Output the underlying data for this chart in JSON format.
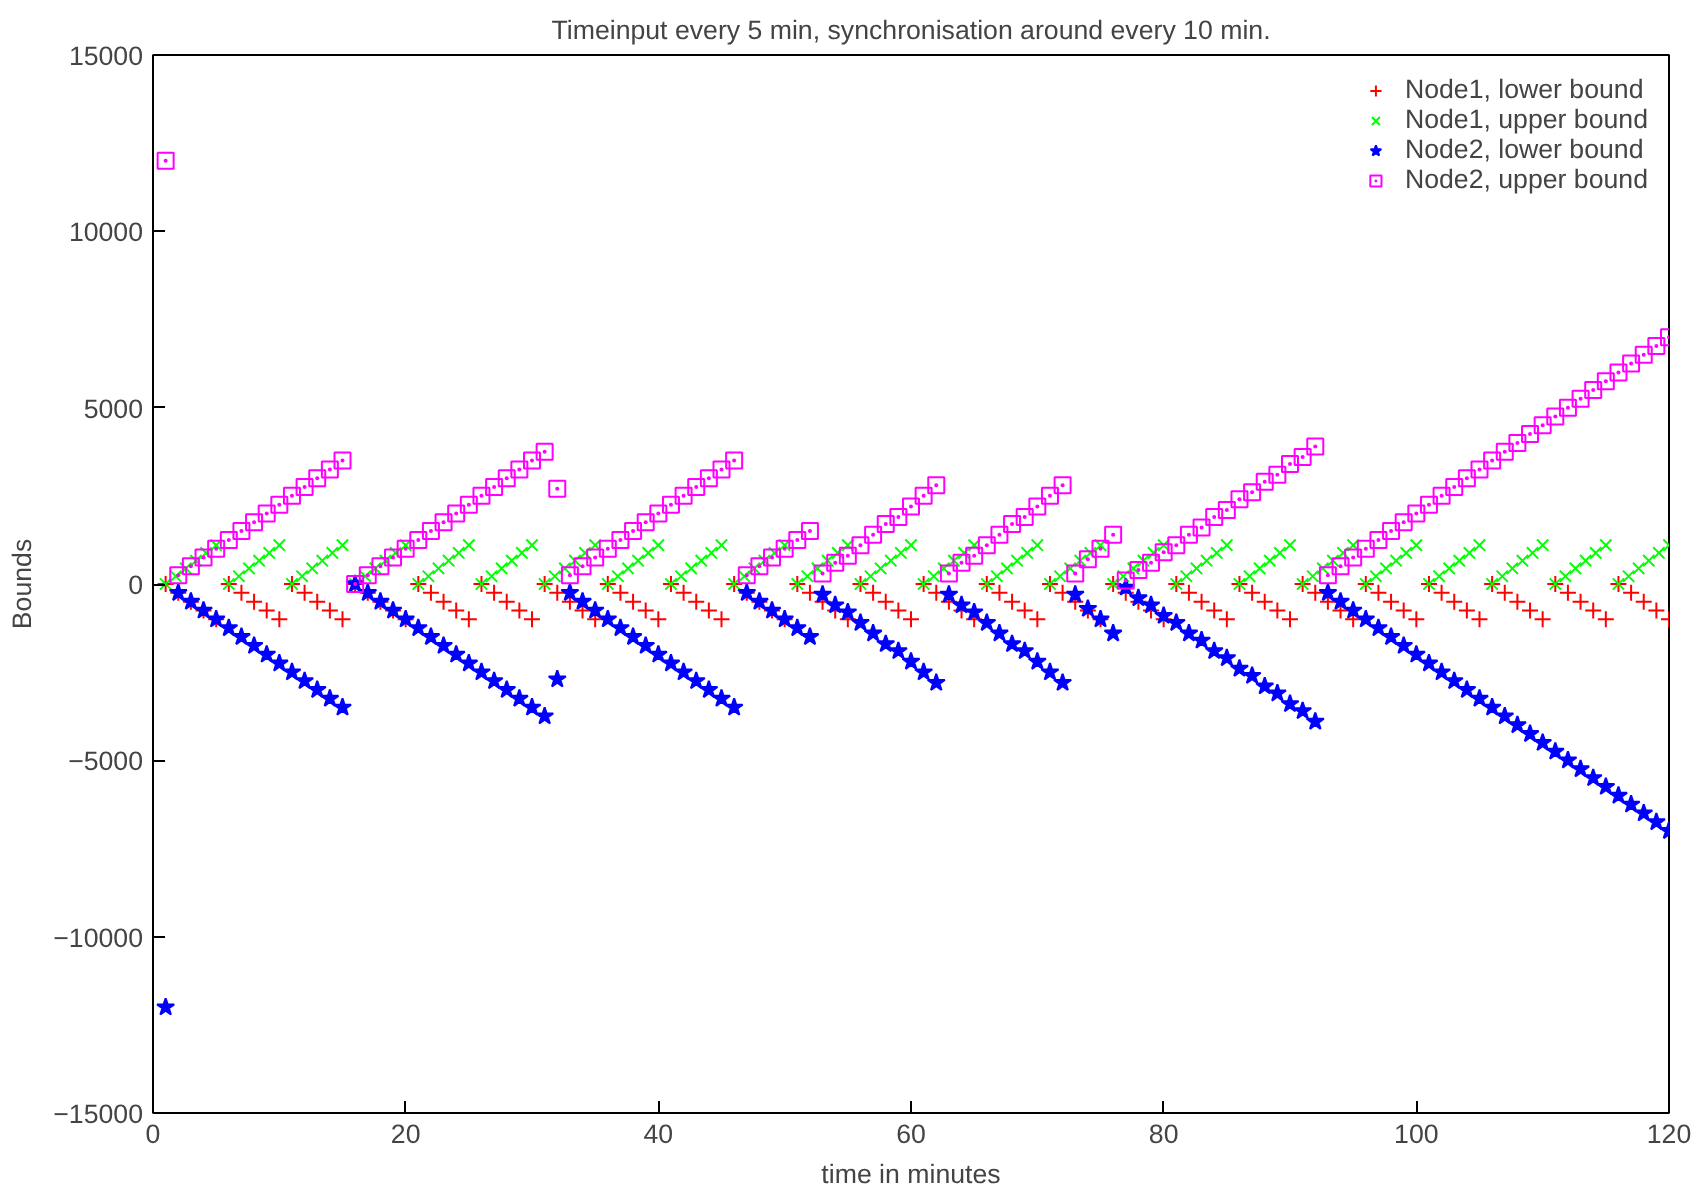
{
  "chart_data": {
    "type": "scatter",
    "title": "Timeinput every 5 min, synchronisation around every 10 min.",
    "xlabel": "time in minutes",
    "ylabel": "Bounds",
    "xlim": [
      0,
      120
    ],
    "xticks": [
      0,
      20,
      40,
      60,
      80,
      100,
      120
    ],
    "ylim": [
      -15000,
      15000
    ],
    "yticks": [
      -15000,
      -10000,
      -5000,
      0,
      5000,
      10000,
      15000
    ],
    "grid": false,
    "legend": "top right",
    "series": [
      {
        "name": "Node1, lower bound",
        "color": "#ff0000",
        "marker": "cross",
        "x": [
          1,
          2,
          3,
          4,
          5,
          6,
          7,
          8,
          9,
          10,
          11,
          12,
          13,
          14,
          15,
          16,
          17,
          18,
          19,
          20,
          21,
          22,
          23,
          24,
          25,
          26,
          27,
          28,
          29,
          30,
          31,
          32,
          33,
          34,
          35,
          36,
          37,
          38,
          39,
          40,
          41,
          42,
          43,
          44,
          45,
          46,
          47,
          48,
          49,
          50,
          51,
          52,
          53,
          54,
          55,
          56,
          57,
          58,
          59,
          60,
          61,
          62,
          63,
          64,
          65,
          66,
          67,
          68,
          69,
          70,
          71,
          72,
          73,
          74,
          75,
          76,
          77,
          78,
          79,
          80,
          81,
          82,
          83,
          84,
          85,
          86,
          87,
          88,
          89,
          90,
          91,
          92,
          93,
          94,
          95,
          96,
          97,
          98,
          99,
          100,
          101,
          102,
          103,
          104,
          105,
          106,
          107,
          108,
          109,
          110,
          111,
          112,
          113,
          114,
          115,
          116,
          117,
          118,
          119,
          120
        ],
        "values": [
          0,
          -250,
          -500,
          -750,
          -1000,
          0,
          -250,
          -500,
          -750,
          -1000,
          0,
          -250,
          -500,
          -750,
          -1000,
          0,
          -250,
          -500,
          -750,
          -1000,
          0,
          -250,
          -500,
          -750,
          -1000,
          0,
          -250,
          -500,
          -750,
          -1000,
          0,
          -250,
          -500,
          -750,
          -1000,
          0,
          -250,
          -500,
          -750,
          -1000,
          0,
          -250,
          -500,
          -750,
          -1000,
          0,
          -250,
          -500,
          -750,
          -1000,
          0,
          -250,
          -500,
          -750,
          -1000,
          0,
          -250,
          -500,
          -750,
          -1000,
          0,
          -250,
          -500,
          -750,
          -1000,
          0,
          -250,
          -500,
          -750,
          -1000,
          0,
          -250,
          -500,
          -750,
          -1000,
          0,
          -250,
          -500,
          -750,
          -1000,
          0,
          -250,
          -500,
          -750,
          -1000,
          0,
          -250,
          -500,
          -750,
          -1000,
          0,
          -250,
          -500,
          -750,
          -1000,
          0,
          -250,
          -500,
          -750,
          -1000,
          0,
          -250,
          -500,
          -750,
          -1000,
          0,
          -250,
          -500,
          -750,
          -1000,
          0,
          -250,
          -500,
          -750,
          -1000,
          0,
          -250,
          -500,
          -750,
          -1000
        ]
      },
      {
        "name": "Node1, upper bound",
        "color": "#00ff00",
        "marker": "x",
        "x": [
          1,
          1.8,
          2.6,
          3.4,
          4.2,
          5,
          6,
          6.8,
          7.6,
          8.4,
          9.2,
          10,
          11,
          11.8,
          12.6,
          13.4,
          14.2,
          15,
          16,
          16.8,
          17.6,
          18.4,
          19.2,
          20,
          21,
          21.8,
          22.6,
          23.4,
          24.2,
          25,
          26,
          26.8,
          27.6,
          28.4,
          29.2,
          30,
          31,
          31.8,
          32.6,
          33.4,
          34.2,
          35,
          36,
          36.8,
          37.6,
          38.4,
          39.2,
          40,
          41,
          41.8,
          42.6,
          43.4,
          44.2,
          45,
          46,
          46.8,
          47.6,
          48.4,
          49.2,
          50,
          51,
          51.8,
          52.6,
          53.4,
          54.2,
          55,
          56,
          56.8,
          57.6,
          58.4,
          59.2,
          60,
          61,
          61.8,
          62.6,
          63.4,
          64.2,
          65,
          66,
          66.8,
          67.6,
          68.4,
          69.2,
          70,
          71,
          71.8,
          72.6,
          73.4,
          74.2,
          75,
          76,
          76.8,
          77.6,
          78.4,
          79.2,
          80,
          81,
          81.8,
          82.6,
          83.4,
          84.2,
          85,
          86,
          86.8,
          87.6,
          88.4,
          89.2,
          90,
          91,
          91.8,
          92.6,
          93.4,
          94.2,
          95,
          96,
          96.8,
          97.6,
          98.4,
          99.2,
          100,
          101,
          101.8,
          102.6,
          103.4,
          104.2,
          105,
          106,
          106.8,
          107.6,
          108.4,
          109.2,
          110,
          111,
          111.8,
          112.6,
          113.4,
          114.2,
          115,
          116,
          116.8,
          117.6,
          118.4,
          119.2,
          120
        ],
        "values": [
          0,
          220,
          440,
          660,
          880,
          1100,
          0,
          220,
          440,
          660,
          880,
          1100,
          0,
          220,
          440,
          660,
          880,
          1100,
          0,
          220,
          440,
          660,
          880,
          1100,
          0,
          220,
          440,
          660,
          880,
          1100,
          0,
          220,
          440,
          660,
          880,
          1100,
          0,
          220,
          440,
          660,
          880,
          1100,
          0,
          220,
          440,
          660,
          880,
          1100,
          0,
          220,
          440,
          660,
          880,
          1100,
          0,
          220,
          440,
          660,
          880,
          1100,
          0,
          220,
          440,
          660,
          880,
          1100,
          0,
          220,
          440,
          660,
          880,
          1100,
          0,
          220,
          440,
          660,
          880,
          1100,
          0,
          220,
          440,
          660,
          880,
          1100,
          0,
          220,
          440,
          660,
          880,
          1100,
          0,
          220,
          440,
          660,
          880,
          1100,
          0,
          220,
          440,
          660,
          880,
          1100,
          0,
          220,
          440,
          660,
          880,
          1100,
          0,
          220,
          440,
          660,
          880,
          1100,
          0,
          220,
          440,
          660,
          880,
          1100,
          0,
          220,
          440,
          660,
          880,
          1100,
          0,
          220,
          440,
          660,
          880,
          1100,
          0,
          220,
          440,
          660,
          880,
          1100,
          0,
          220,
          440,
          660,
          880,
          1100
        ]
      },
      {
        "name": "Node2, lower bound",
        "color": "#0000ff",
        "marker": "star",
        "x": [
          1,
          2,
          3,
          4,
          5,
          6,
          7,
          8,
          9,
          10,
          11,
          12,
          13,
          14,
          15,
          16,
          17,
          18,
          19,
          20,
          21,
          22,
          23,
          24,
          25,
          26,
          27,
          28,
          29,
          30,
          31,
          32,
          33,
          34,
          35,
          36,
          37,
          38,
          39,
          40,
          41,
          42,
          43,
          44,
          45,
          46,
          47,
          48,
          49,
          50,
          51,
          52,
          53,
          54,
          55,
          56,
          57,
          58,
          59,
          60,
          61,
          62,
          63,
          64,
          65,
          66,
          67,
          68,
          69,
          70,
          71,
          72,
          73,
          74,
          75,
          76,
          77,
          78,
          79,
          80,
          81,
          82,
          83,
          84,
          85,
          86,
          87,
          88,
          89,
          90,
          91,
          92,
          93,
          94,
          95,
          96,
          97,
          98,
          99,
          100,
          101,
          102,
          103,
          104,
          105,
          106,
          107,
          108,
          109,
          110,
          111,
          112,
          113,
          114,
          115,
          116,
          117,
          118,
          119,
          120
        ],
        "values": [
          -12000,
          -250,
          -500,
          -750,
          -1000,
          -1250,
          -1500,
          -1750,
          -2000,
          -2250,
          -2500,
          -2750,
          -3000,
          -3250,
          -3500,
          0,
          -250,
          -500,
          -750,
          -1000,
          -1250,
          -1500,
          -1750,
          -2000,
          -2250,
          -2500,
          -2750,
          -3000,
          -3250,
          -3500,
          -3750,
          -2700,
          -250,
          -500,
          -750,
          -1000,
          -1250,
          -1500,
          -1750,
          -2000,
          -2250,
          -2500,
          -2750,
          -3000,
          -3250,
          -3500,
          -250,
          -500,
          -750,
          -1000,
          -1250,
          -1500,
          -300,
          -600,
          -800,
          -1100,
          -1400,
          -1700,
          -1900,
          -2200,
          -2500,
          -2800,
          -300,
          -600,
          -800,
          -1100,
          -1400,
          -1700,
          -1900,
          -2200,
          -2500,
          -2800,
          -300,
          -700,
          -1000,
          -1400,
          -100,
          -400,
          -600,
          -900,
          -1100,
          -1400,
          -1600,
          -1900,
          -2100,
          -2400,
          -2600,
          -2900,
          -3100,
          -3400,
          -3600,
          -3900,
          -250,
          -500,
          -750,
          -1000,
          -1250,
          -1500,
          -1750,
          -2000,
          -2250,
          -2500,
          -2750,
          -3000,
          -3250,
          -3500,
          -3750,
          -4000,
          -4250,
          -4500,
          -4750,
          -5000,
          -5250,
          -5500,
          -5750,
          -6000,
          -6250,
          -6500,
          -6750,
          -7000
        ]
      },
      {
        "name": "Node2, upper bound",
        "color": "#ff00ff",
        "marker": "square",
        "x": [
          1,
          2,
          3,
          4,
          5,
          6,
          7,
          8,
          9,
          10,
          11,
          12,
          13,
          14,
          15,
          16,
          17,
          18,
          19,
          20,
          21,
          22,
          23,
          24,
          25,
          26,
          27,
          28,
          29,
          30,
          31,
          32,
          33,
          34,
          35,
          36,
          37,
          38,
          39,
          40,
          41,
          42,
          43,
          44,
          45,
          46,
          47,
          48,
          49,
          50,
          51,
          52,
          53,
          54,
          55,
          56,
          57,
          58,
          59,
          60,
          61,
          62,
          63,
          64,
          65,
          66,
          67,
          68,
          69,
          70,
          71,
          72,
          73,
          74,
          75,
          76,
          77,
          78,
          79,
          80,
          81,
          82,
          83,
          84,
          85,
          86,
          87,
          88,
          89,
          90,
          91,
          92,
          93,
          94,
          95,
          96,
          97,
          98,
          99,
          100,
          101,
          102,
          103,
          104,
          105,
          106,
          107,
          108,
          109,
          110,
          111,
          112,
          113,
          114,
          115,
          116,
          117,
          118,
          119,
          120
        ],
        "values": [
          12000,
          250,
          500,
          750,
          1000,
          1250,
          1500,
          1750,
          2000,
          2250,
          2500,
          2750,
          3000,
          3250,
          3500,
          0,
          250,
          500,
          750,
          1000,
          1250,
          1500,
          1750,
          2000,
          2250,
          2500,
          2750,
          3000,
          3250,
          3500,
          3750,
          2700,
          250,
          500,
          750,
          1000,
          1250,
          1500,
          1750,
          2000,
          2250,
          2500,
          2750,
          3000,
          3250,
          3500,
          250,
          500,
          750,
          1000,
          1250,
          1500,
          300,
          600,
          800,
          1100,
          1400,
          1700,
          1900,
          2200,
          2500,
          2800,
          300,
          600,
          800,
          1100,
          1400,
          1700,
          1900,
          2200,
          2500,
          2800,
          300,
          700,
          1000,
          1400,
          100,
          400,
          600,
          900,
          1100,
          1400,
          1600,
          1900,
          2100,
          2400,
          2600,
          2900,
          3100,
          3400,
          3600,
          3900,
          250,
          500,
          750,
          1000,
          1250,
          1500,
          1750,
          2000,
          2250,
          2500,
          2750,
          3000,
          3250,
          3500,
          3750,
          4000,
          4250,
          4500,
          4750,
          5000,
          5250,
          5500,
          5750,
          6000,
          6250,
          6500,
          6750,
          7000
        ]
      }
    ]
  }
}
